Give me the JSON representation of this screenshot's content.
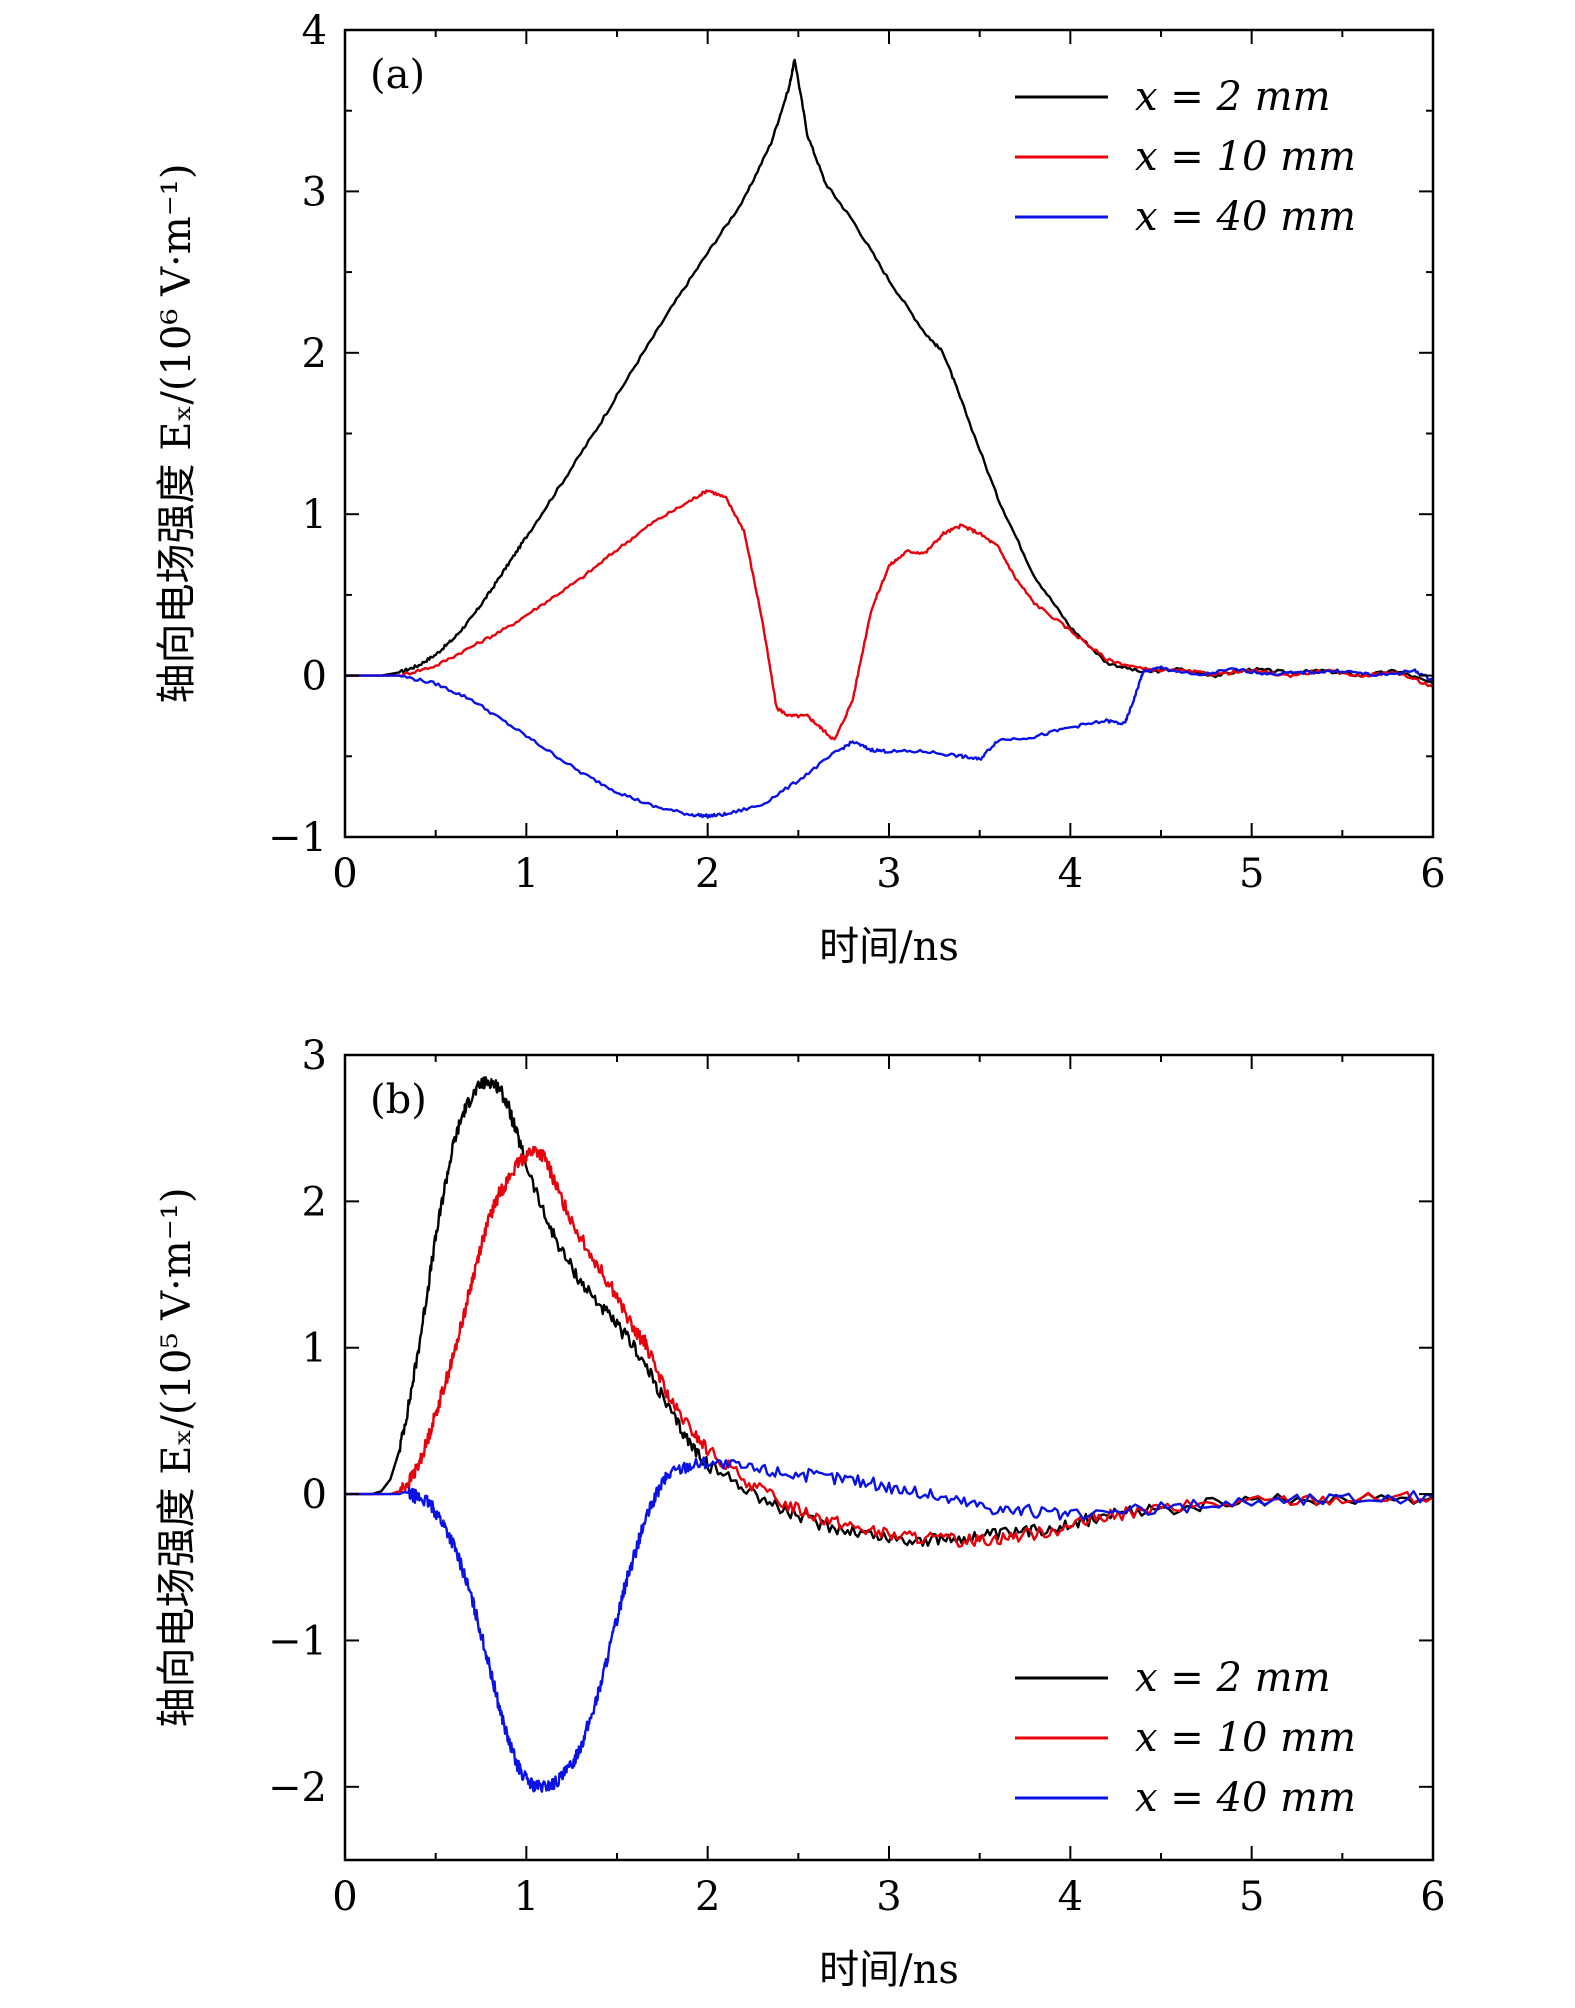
{
  "colors": {
    "black": "#000000",
    "red": "#e8000b",
    "blue": "#0a12e6"
  },
  "chart_data": [
    {
      "type": "line",
      "panel_label": "(a)",
      "xlabel": "时间/ns",
      "ylabel": "轴向电场强度 Eₓ/(10⁶ V·m⁻¹)",
      "xlim": [
        0,
        6
      ],
      "ylim": [
        -1,
        4
      ],
      "x_ticks": [
        "0",
        "1",
        "2",
        "3",
        "4",
        "5",
        "6"
      ],
      "y_ticks": [
        "−1",
        "0",
        "1",
        "2",
        "3",
        "4"
      ],
      "legend_position": "top-right",
      "series": [
        {
          "name": "x = 2 mm",
          "color": "black",
          "x": [
            0,
            0.2,
            0.3,
            0.4,
            0.5,
            0.6,
            0.7,
            0.8,
            0.9,
            1.0,
            1.2,
            1.4,
            1.6,
            1.8,
            2.0,
            2.2,
            2.35,
            2.45,
            2.48,
            2.55,
            2.65,
            2.8,
            3.0,
            3.2,
            3.3,
            3.4,
            3.6,
            3.8,
            4.0,
            4.2,
            4.4,
            4.6,
            4.8,
            5.0,
            5.2,
            5.4,
            5.6,
            5.8,
            6.0
          ],
          "y": [
            0,
            0,
            0.02,
            0.06,
            0.13,
            0.23,
            0.36,
            0.52,
            0.69,
            0.86,
            1.2,
            1.55,
            1.92,
            2.28,
            2.62,
            2.95,
            3.3,
            3.65,
            3.82,
            3.35,
            3.05,
            2.82,
            2.45,
            2.12,
            2.0,
            1.7,
            1.1,
            0.62,
            0.3,
            0.08,
            0.02,
            0.04,
            0.0,
            0.04,
            0.02,
            0.03,
            0.0,
            0.03,
            -0.05
          ]
        },
        {
          "name": "x = 10 mm",
          "color": "red",
          "x": [
            0,
            0.3,
            0.5,
            0.7,
            0.9,
            1.1,
            1.3,
            1.5,
            1.7,
            1.9,
            2.0,
            2.1,
            2.2,
            2.3,
            2.38,
            2.45,
            2.55,
            2.62,
            2.7,
            2.8,
            2.9,
            3.0,
            3.1,
            3.2,
            3.3,
            3.4,
            3.5,
            3.6,
            3.7,
            3.8,
            4.0,
            4.2,
            4.4,
            4.6,
            4.8,
            5.0,
            5.2,
            5.4,
            5.6,
            5.8,
            6.0
          ],
          "y": [
            0,
            0,
            0.06,
            0.18,
            0.3,
            0.45,
            0.6,
            0.78,
            0.95,
            1.08,
            1.15,
            1.1,
            0.9,
            0.35,
            -0.2,
            -0.25,
            -0.25,
            -0.32,
            -0.4,
            -0.15,
            0.4,
            0.68,
            0.77,
            0.76,
            0.88,
            0.93,
            0.88,
            0.8,
            0.6,
            0.45,
            0.28,
            0.1,
            0.04,
            0.03,
            0.01,
            0.03,
            0.0,
            0.03,
            0.0,
            0.02,
            -0.07
          ]
        },
        {
          "name": "x = 40 mm",
          "color": "blue",
          "x": [
            0,
            0.3,
            0.5,
            0.7,
            0.9,
            1.1,
            1.3,
            1.5,
            1.7,
            1.9,
            2.0,
            2.1,
            2.3,
            2.5,
            2.7,
            2.8,
            2.9,
            3.0,
            3.2,
            3.4,
            3.5,
            3.6,
            3.8,
            4.0,
            4.2,
            4.3,
            4.35,
            4.4,
            4.5,
            4.7,
            4.9,
            5.1,
            5.3,
            5.5,
            5.7,
            5.9,
            6.0
          ],
          "y": [
            0,
            0,
            -0.05,
            -0.15,
            -0.3,
            -0.45,
            -0.6,
            -0.72,
            -0.81,
            -0.86,
            -0.87,
            -0.86,
            -0.8,
            -0.65,
            -0.48,
            -0.41,
            -0.46,
            -0.47,
            -0.47,
            -0.5,
            -0.52,
            -0.4,
            -0.38,
            -0.32,
            -0.28,
            -0.3,
            -0.15,
            0.02,
            0.05,
            0.0,
            0.04,
            0.01,
            0.02,
            0.03,
            0.0,
            0.03,
            -0.03
          ]
        }
      ]
    },
    {
      "type": "line",
      "panel_label": "(b)",
      "xlabel": "时间/ns",
      "ylabel": "轴向电场强度 Eₓ/(10⁵ V·m⁻¹)",
      "xlim": [
        0,
        6
      ],
      "ylim": [
        -2.5,
        3
      ],
      "x_ticks": [
        "0",
        "1",
        "2",
        "3",
        "4",
        "5",
        "6"
      ],
      "y_ticks": [
        "−2",
        "−1",
        "0",
        "1",
        "2",
        "3"
      ],
      "legend_position": "bottom-right",
      "series": [
        {
          "name": "x = 2 mm",
          "color": "black",
          "x": [
            0,
            0.15,
            0.2,
            0.25,
            0.3,
            0.35,
            0.4,
            0.45,
            0.5,
            0.55,
            0.6,
            0.65,
            0.7,
            0.75,
            0.8,
            0.85,
            0.9,
            0.95,
            1.0,
            1.1,
            1.2,
            1.3,
            1.4,
            1.5,
            1.6,
            1.7,
            1.8,
            1.9,
            2.0,
            2.2,
            2.4,
            2.6,
            2.8,
            3.0,
            3.2,
            3.4,
            3.6,
            3.8,
            4.0,
            4.2,
            4.5,
            5.0,
            5.5,
            6.0
          ],
          "y": [
            0,
            0,
            0.02,
            0.1,
            0.3,
            0.6,
            0.95,
            1.35,
            1.75,
            2.1,
            2.4,
            2.6,
            2.72,
            2.8,
            2.82,
            2.78,
            2.65,
            2.45,
            2.25,
            1.9,
            1.65,
            1.45,
            1.3,
            1.15,
            1.0,
            0.78,
            0.55,
            0.35,
            0.2,
            0.05,
            -0.1,
            -0.2,
            -0.25,
            -0.3,
            -0.32,
            -0.3,
            -0.28,
            -0.25,
            -0.2,
            -0.15,
            -0.1,
            -0.05,
            -0.03,
            -0.02
          ]
        },
        {
          "name": "x = 10 mm",
          "color": "red",
          "x": [
            0,
            0.25,
            0.3,
            0.35,
            0.4,
            0.45,
            0.5,
            0.55,
            0.6,
            0.65,
            0.7,
            0.75,
            0.8,
            0.85,
            0.9,
            0.95,
            1.0,
            1.05,
            1.1,
            1.15,
            1.2,
            1.3,
            1.4,
            1.5,
            1.6,
            1.65,
            1.7,
            1.8,
            1.9,
            2.0,
            2.2,
            2.4,
            2.6,
            2.8,
            3.0,
            3.2,
            3.4,
            3.6,
            3.8,
            4.0,
            4.2,
            4.5,
            5.0,
            5.5,
            6.0
          ],
          "y": [
            0,
            0,
            0.02,
            0.08,
            0.18,
            0.35,
            0.55,
            0.75,
            0.95,
            1.2,
            1.45,
            1.7,
            1.9,
            2.05,
            2.15,
            2.25,
            2.32,
            2.35,
            2.3,
            2.15,
            2.0,
            1.75,
            1.55,
            1.35,
            1.1,
            1.05,
            0.9,
            0.62,
            0.45,
            0.3,
            0.1,
            -0.05,
            -0.15,
            -0.22,
            -0.28,
            -0.3,
            -0.32,
            -0.3,
            -0.27,
            -0.22,
            -0.15,
            -0.1,
            -0.05,
            -0.03,
            -0.02
          ]
        },
        {
          "name": "x = 40 mm",
          "color": "blue",
          "x": [
            0,
            0.35,
            0.4,
            0.45,
            0.5,
            0.55,
            0.6,
            0.65,
            0.7,
            0.75,
            0.8,
            0.85,
            0.9,
            0.95,
            1.0,
            1.05,
            1.1,
            1.15,
            1.2,
            1.25,
            1.3,
            1.35,
            1.4,
            1.45,
            1.5,
            1.55,
            1.6,
            1.65,
            1.7,
            1.75,
            1.8,
            1.9,
            2.0,
            2.2,
            2.4,
            2.6,
            2.8,
            3.0,
            3.2,
            3.4,
            3.6,
            3.8,
            4.0,
            4.5,
            5.0,
            5.5,
            6.0
          ],
          "y": [
            0,
            0,
            -0.02,
            -0.05,
            -0.12,
            -0.22,
            -0.35,
            -0.52,
            -0.72,
            -0.95,
            -1.2,
            -1.45,
            -1.68,
            -1.85,
            -1.95,
            -2.0,
            -2.0,
            -1.98,
            -1.93,
            -1.85,
            -1.72,
            -1.55,
            -1.35,
            -1.1,
            -0.85,
            -0.6,
            -0.4,
            -0.2,
            -0.05,
            0.08,
            0.15,
            0.2,
            0.22,
            0.18,
            0.15,
            0.12,
            0.1,
            0.05,
            0.0,
            -0.05,
            -0.1,
            -0.12,
            -0.15,
            -0.1,
            -0.05,
            -0.03,
            -0.02
          ]
        }
      ]
    }
  ]
}
